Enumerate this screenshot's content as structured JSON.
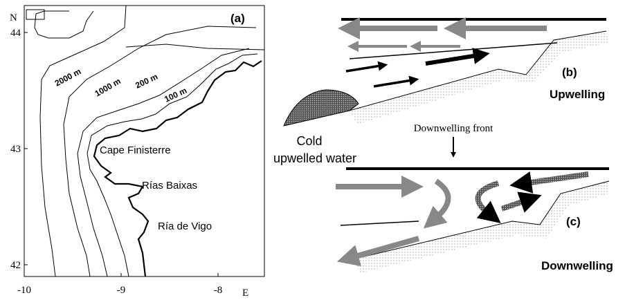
{
  "panel_a": {
    "label": "(a)",
    "north": "N",
    "east": "E",
    "lat_ticks": [
      "44",
      "43",
      "42"
    ],
    "lon_ticks": [
      "-10",
      "-9",
      "-8"
    ],
    "contours": [
      "2000 m",
      "1000 m",
      "200 m",
      "100 m"
    ],
    "places": [
      "Cape Finisterre",
      "Rías Baixas",
      "Ría de Vigo"
    ]
  },
  "panel_b": {
    "label": "(b)",
    "title": "Upwelling",
    "cold_water": [
      "Cold",
      "upwelled water"
    ]
  },
  "front": "Downwelling front",
  "panel_c": {
    "label": "(c)",
    "title": "Downwelling"
  }
}
